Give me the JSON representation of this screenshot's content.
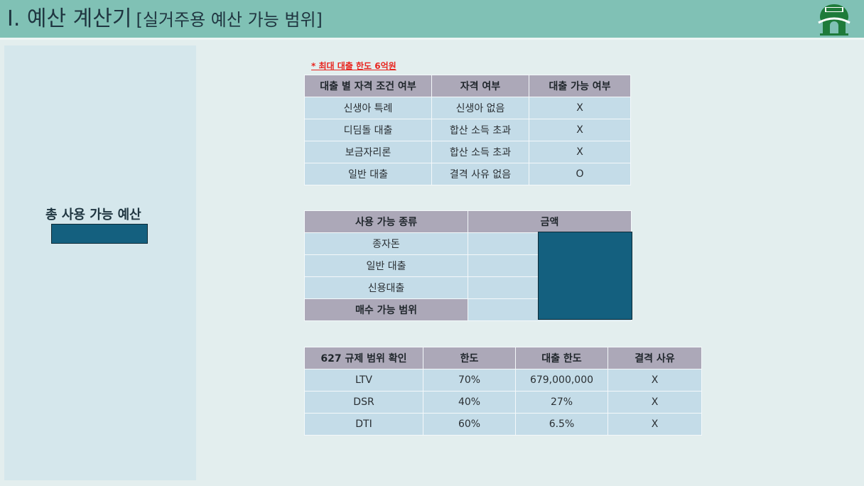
{
  "header": {
    "title": "I. 예산 계산기",
    "subtitle": "[실거주용 예산 가능 범위]",
    "logo_icon": "gate-emblem-icon",
    "accent_color": "#80c1b5"
  },
  "left_panel": {
    "label": "총 사용 가능 예산"
  },
  "note": "* 최대 대출 한도 6억원",
  "eligibility_table": {
    "headers": [
      "대출 별 자격 조건 여부",
      "자격 여부",
      "대출 가능 여부"
    ],
    "rows": [
      [
        "신생아 특례",
        "신생아 없음",
        "X"
      ],
      [
        "디딤돌 대출",
        "합산 소득 초과",
        "X"
      ],
      [
        "보금자리론",
        "합산 소득 초과",
        "X"
      ],
      [
        "일반 대출",
        "결격 사유 없음",
        "O"
      ]
    ]
  },
  "funds_table": {
    "headers": [
      "사용 가능 종류",
      "금액"
    ],
    "rows": [
      "종자돈",
      "일반 대출",
      "신용대출"
    ],
    "total_label": "매수 가능 범위"
  },
  "regulation_table": {
    "headers": [
      "627 규제 범위 확인",
      "한도",
      "대출 한도",
      "결격 사유"
    ],
    "rows": [
      [
        "LTV",
        "70%",
        "679,000,000",
        "X"
      ],
      [
        "DSR",
        "40%",
        "27%",
        "X"
      ],
      [
        "DTI",
        "60%",
        "6.5%",
        "X"
      ]
    ]
  }
}
